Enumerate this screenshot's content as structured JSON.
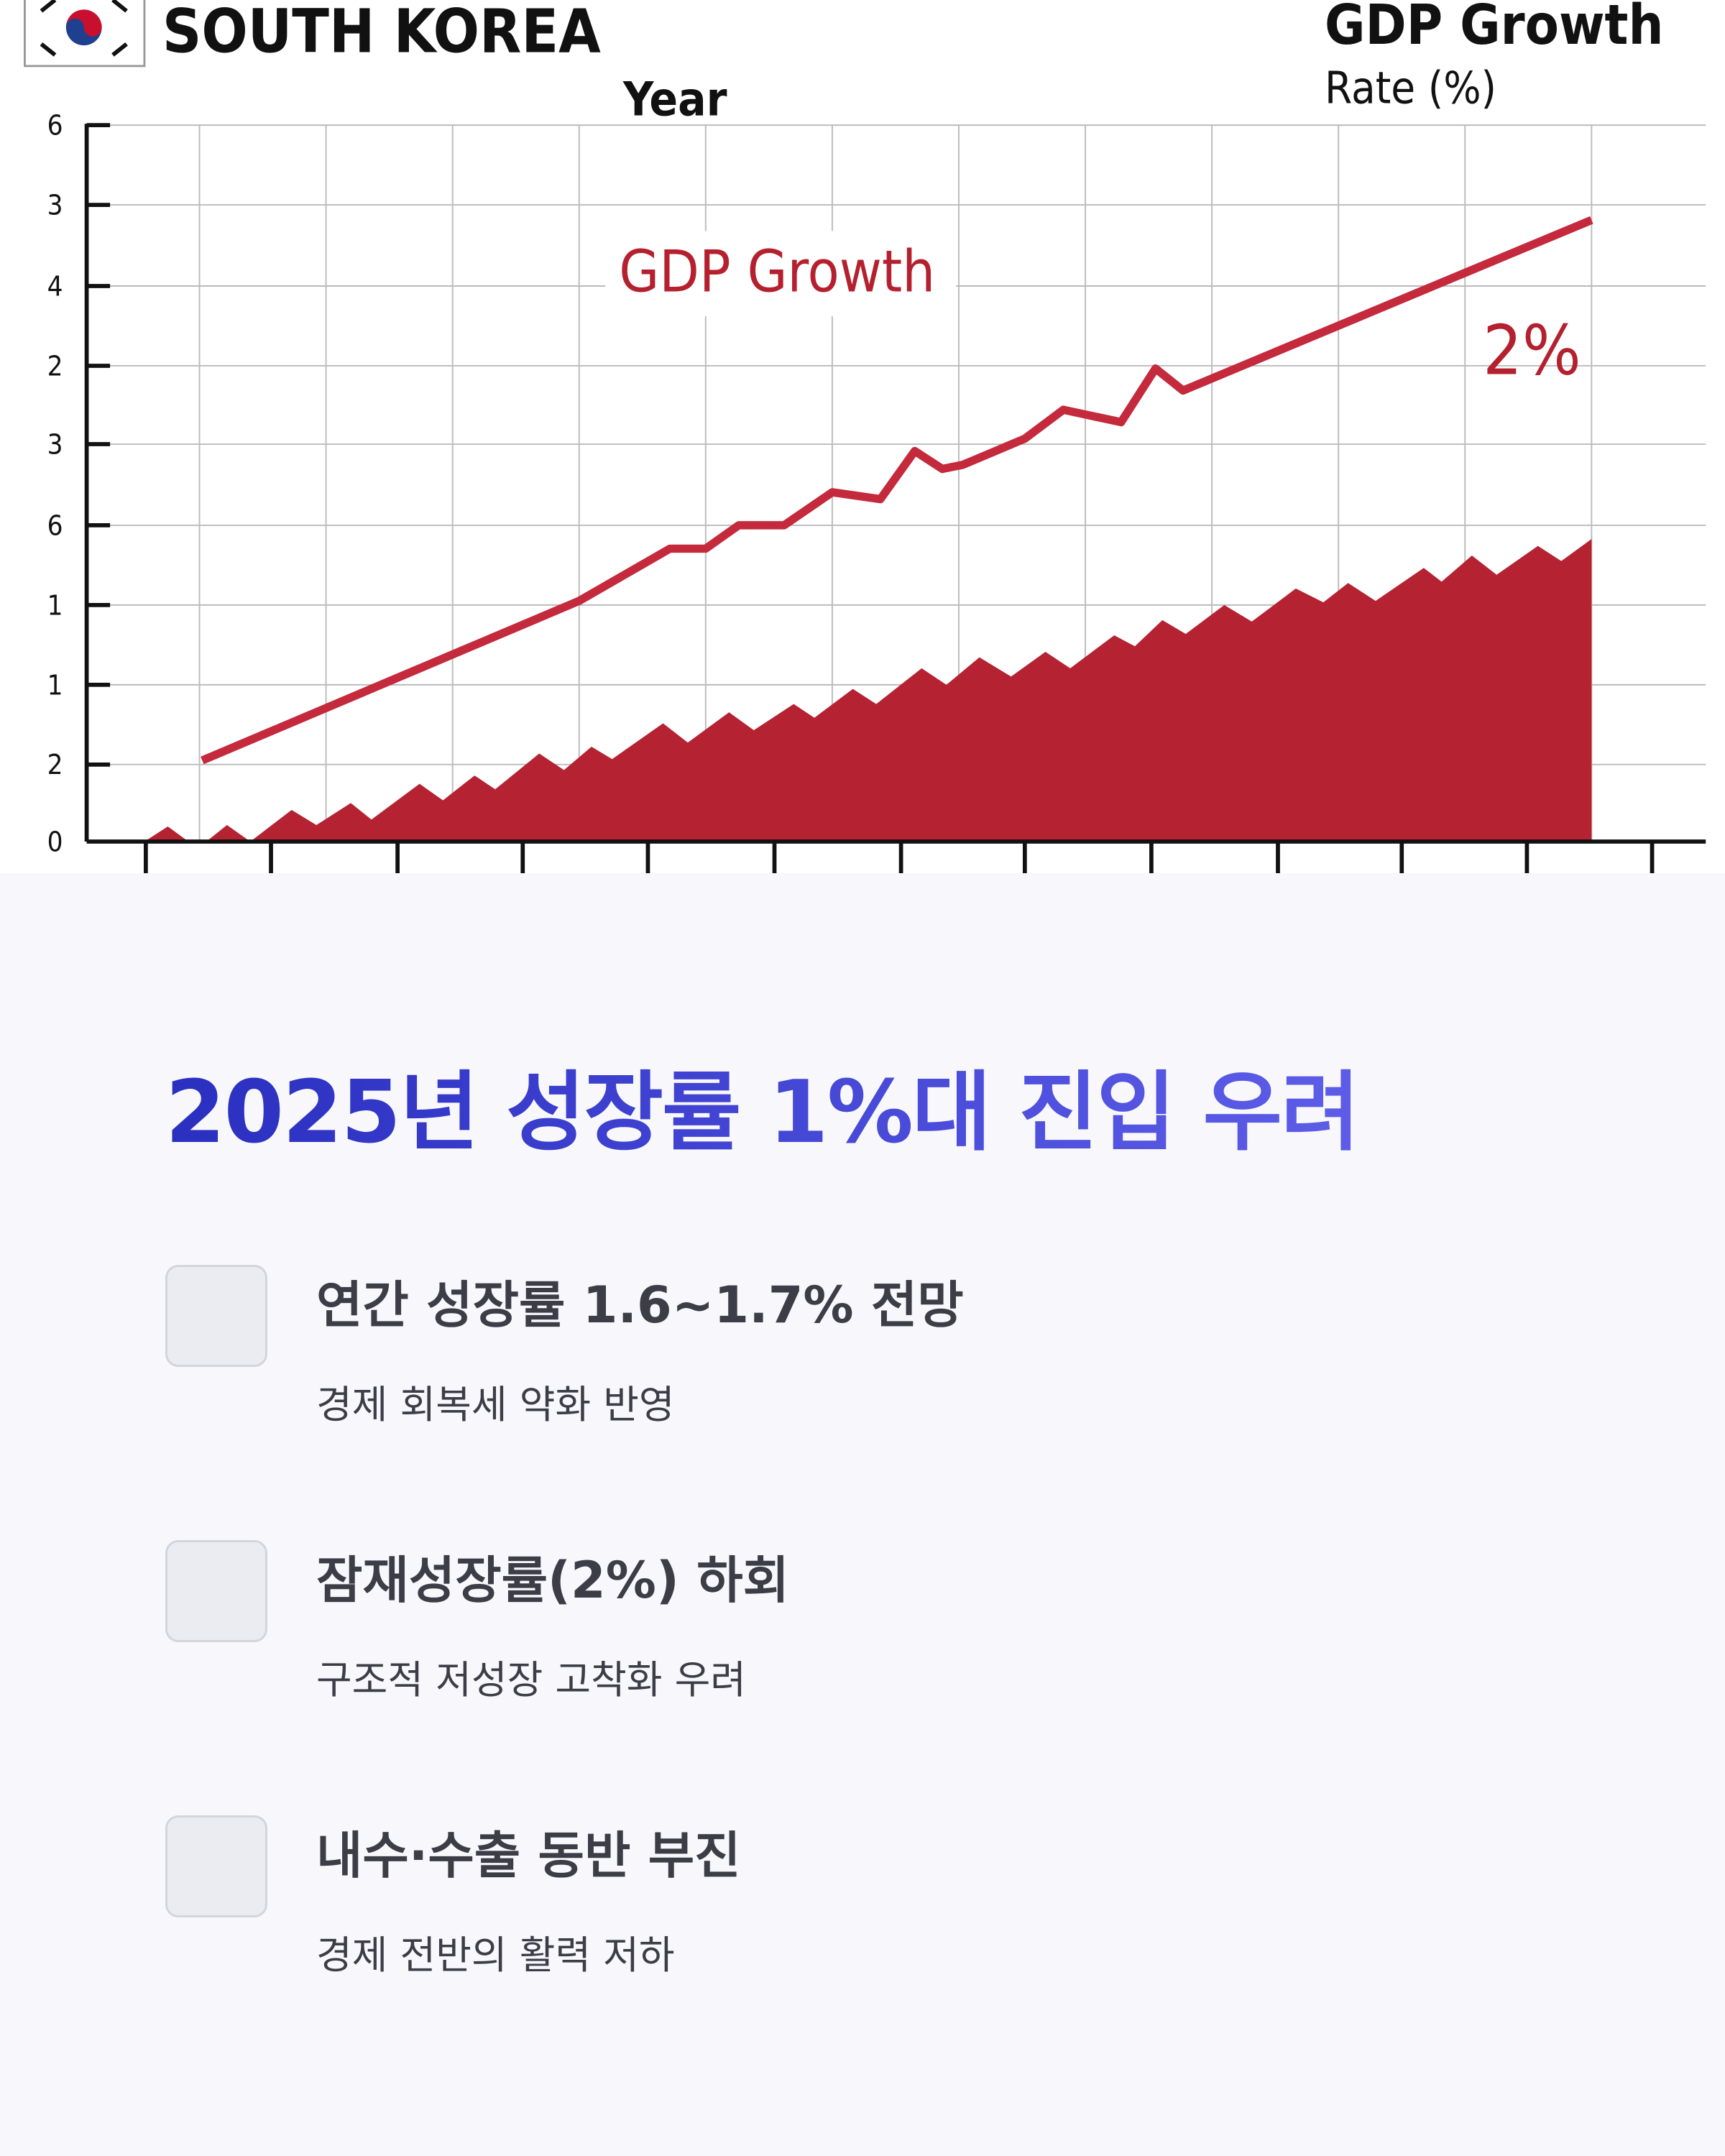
{
  "header_image": {
    "title": "SOUTH KOREA",
    "x_axis_label": "Year",
    "legend_title": "GDP Growth",
    "legend_subtitle": "Rate (%)",
    "y_labels": [
      "6",
      "3",
      "4",
      "2",
      "3",
      "6",
      "1",
      "1",
      "2",
      "0"
    ],
    "line_label": "GDP Growth",
    "end_label": "2%"
  },
  "heading": "2025년 성장률 1%대 진입 우려",
  "items": [
    {
      "title": "연간 성장률 1.6~1.7% 전망",
      "description": "경제 회복세 약화 반영"
    },
    {
      "title": "잠재성장률(2%) 하회",
      "description": "구조적 저성장 고착화 우려"
    },
    {
      "title": "내수·수출 동반 부진",
      "description": "경제 전반의 활력 저하"
    }
  ]
}
